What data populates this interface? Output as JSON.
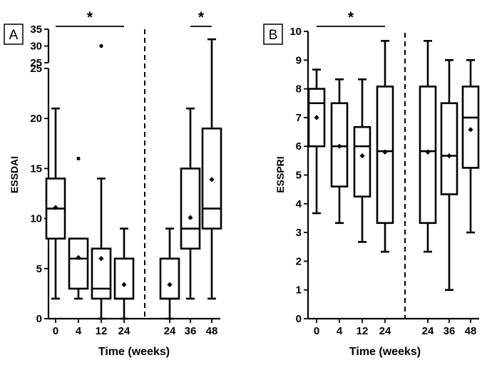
{
  "chart_data": [
    {
      "type": "box",
      "panel_label": "A",
      "ylabel": "ESSDAI",
      "xlabel": "Time (weeks)",
      "y_axis": {
        "segments": [
          {
            "range": [
              0,
              25
            ],
            "ticks": [
              0,
              5,
              10,
              15,
              20,
              25
            ]
          },
          {
            "range": [
              25,
              35
            ],
            "ticks": [
              25,
              30,
              35
            ]
          }
        ]
      },
      "groups": [
        {
          "label": "0",
          "min": 2,
          "q1": 8,
          "median": 11,
          "q3": 14,
          "max": 21,
          "mean": 11.1,
          "outliers": []
        },
        {
          "label": "4",
          "min": 2,
          "q1": 3,
          "median": 6,
          "q3": 8,
          "max": 8,
          "mean": 6.1,
          "outliers": [
            16
          ]
        },
        {
          "label": "12",
          "min": 0,
          "q1": 2,
          "median": 3,
          "q3": 7,
          "max": 14,
          "mean": 6.0,
          "outliers": [
            30
          ]
        },
        {
          "label": "24",
          "min": 0,
          "q1": 2,
          "median": 2,
          "q3": 6,
          "max": 9,
          "mean": 3.4,
          "outliers": []
        },
        {
          "label": "24",
          "min": 0,
          "q1": 2,
          "median": 2,
          "q3": 6,
          "max": 9,
          "mean": 3.4,
          "outliers": []
        },
        {
          "label": "36",
          "min": 2,
          "q1": 7,
          "median": 9,
          "q3": 15,
          "max": 21,
          "mean": 10.1,
          "outliers": []
        },
        {
          "label": "48",
          "min": 2,
          "q1": 9,
          "median": 11,
          "q3": 19,
          "max": 32,
          "mean": 13.9,
          "outliers": []
        }
      ],
      "divider_after_group": 3,
      "significance": [
        {
          "from_group": 0,
          "to_group": 3,
          "label": "*"
        },
        {
          "from_group": 5,
          "to_group": 6,
          "label": "*"
        }
      ]
    },
    {
      "type": "box",
      "panel_label": "B",
      "ylabel": "ESSPRI",
      "xlabel": "Time (weeks)",
      "ylim": [
        0,
        10
      ],
      "yticks": [
        0,
        1,
        2,
        3,
        4,
        5,
        6,
        7,
        8,
        9,
        10
      ],
      "groups": [
        {
          "label": "0",
          "min": 3.67,
          "q1": 6.0,
          "median": 7.5,
          "q3": 8.0,
          "max": 8.67,
          "mean": 7.0,
          "outliers": []
        },
        {
          "label": "4",
          "min": 3.33,
          "q1": 4.6,
          "median": 6.0,
          "q3": 7.5,
          "max": 8.33,
          "mean": 6.0,
          "outliers": []
        },
        {
          "label": "12",
          "min": 2.67,
          "q1": 4.25,
          "median": 6.0,
          "q3": 6.67,
          "max": 8.33,
          "mean": 5.67,
          "outliers": []
        },
        {
          "label": "24",
          "min": 2.33,
          "q1": 3.33,
          "median": 5.83,
          "q3": 8.08,
          "max": 9.67,
          "mean": 5.8,
          "outliers": []
        },
        {
          "label": "24",
          "min": 2.33,
          "q1": 3.33,
          "median": 5.83,
          "q3": 8.08,
          "max": 9.67,
          "mean": 5.8,
          "outliers": []
        },
        {
          "label": "36",
          "min": 1.0,
          "q1": 4.33,
          "median": 5.67,
          "q3": 7.5,
          "max": 9.0,
          "mean": 5.67,
          "outliers": []
        },
        {
          "label": "48",
          "min": 3.0,
          "q1": 5.25,
          "median": 7.0,
          "q3": 8.08,
          "max": 9.0,
          "mean": 6.58,
          "outliers": []
        }
      ],
      "divider_after_group": 3,
      "significance": [
        {
          "from_group": 0,
          "to_group": 3,
          "label": "*"
        }
      ]
    }
  ]
}
